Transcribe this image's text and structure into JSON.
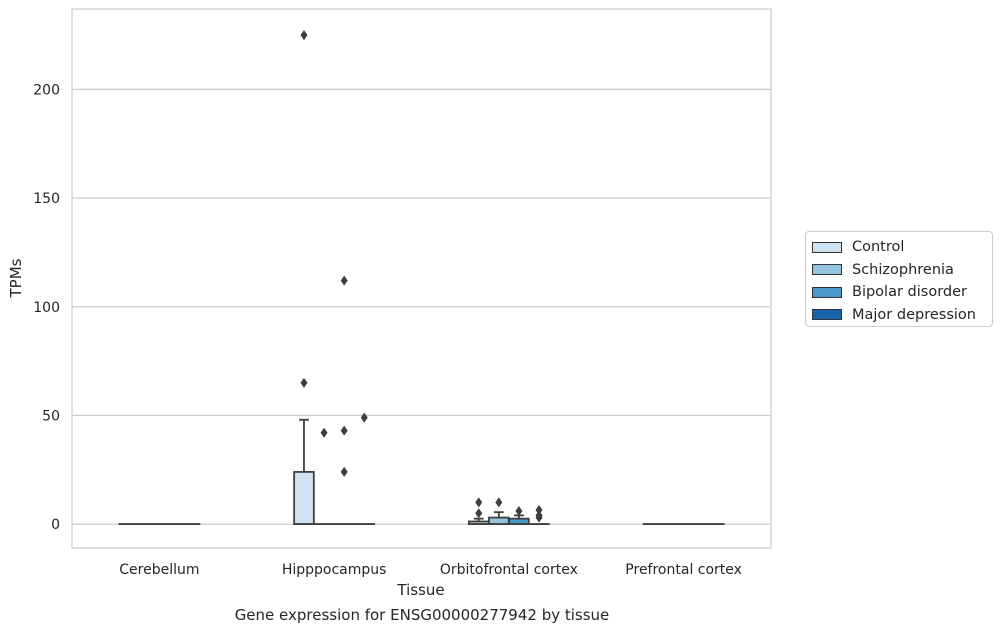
{
  "chart_data": {
    "type": "box",
    "title": "",
    "caption": "Gene expression for ENSG00000277942 by tissue",
    "xlabel": "Tissue",
    "ylabel": "TPMs",
    "ylim": [
      -11,
      237
    ],
    "yticks": [
      0,
      50,
      100,
      150,
      200
    ],
    "grid": true,
    "legend_position": "right",
    "categories": [
      "Cerebellum",
      "Hipppocampus",
      "Orbitofrontal cortex",
      "Prefrontal cortex"
    ],
    "series": [
      {
        "name": "Control",
        "color": "#d0e1f2",
        "boxes": [
          {
            "category": "Cerebellum",
            "q1": 0,
            "median": 0,
            "q3": 0,
            "whisker_low": 0,
            "whisker_high": 0,
            "outliers": []
          },
          {
            "category": "Hipppocampus",
            "q1": 0,
            "median": 0,
            "q3": 24,
            "whisker_low": 0,
            "whisker_high": 48,
            "outliers": [
              65,
              225
            ]
          },
          {
            "category": "Orbitofrontal cortex",
            "q1": 0,
            "median": 0,
            "q3": 1.2,
            "whisker_low": 0,
            "whisker_high": 2.5,
            "outliers": [
              5,
              10
            ]
          },
          {
            "category": "Prefrontal cortex",
            "q1": 0,
            "median": 0,
            "q3": 0,
            "whisker_low": 0,
            "whisker_high": 0,
            "outliers": []
          }
        ]
      },
      {
        "name": "Schizophrenia",
        "color": "#94c4df",
        "boxes": [
          {
            "category": "Cerebellum",
            "q1": 0,
            "median": 0,
            "q3": 0,
            "whisker_low": 0,
            "whisker_high": 0,
            "outliers": []
          },
          {
            "category": "Hipppocampus",
            "q1": 0,
            "median": 0,
            "q3": 0,
            "whisker_low": 0,
            "whisker_high": 0,
            "outliers": [
              42
            ]
          },
          {
            "category": "Orbitofrontal cortex",
            "q1": 0,
            "median": 0,
            "q3": 3,
            "whisker_low": 0,
            "whisker_high": 5.5,
            "outliers": [
              10
            ]
          },
          {
            "category": "Prefrontal cortex",
            "q1": 0,
            "median": 0,
            "q3": 0,
            "whisker_low": 0,
            "whisker_high": 0,
            "outliers": []
          }
        ]
      },
      {
        "name": "Bipolar disorder",
        "color": "#4a98c9",
        "boxes": [
          {
            "category": "Cerebellum",
            "q1": 0,
            "median": 0,
            "q3": 0,
            "whisker_low": 0,
            "whisker_high": 0,
            "outliers": []
          },
          {
            "category": "Hipppocampus",
            "q1": 0,
            "median": 0,
            "q3": 0,
            "whisker_low": 0,
            "whisker_high": 0,
            "outliers": [
              24,
              43,
              112
            ]
          },
          {
            "category": "Orbitofrontal cortex",
            "q1": 0,
            "median": 0,
            "q3": 2.5,
            "whisker_low": 0,
            "whisker_high": 4,
            "outliers": [
              6
            ]
          },
          {
            "category": "Prefrontal cortex",
            "q1": 0,
            "median": 0,
            "q3": 0,
            "whisker_low": 0,
            "whisker_high": 0,
            "outliers": []
          }
        ]
      },
      {
        "name": "Major depression",
        "color": "#1764ab",
        "boxes": [
          {
            "category": "Cerebellum",
            "q1": 0,
            "median": 0,
            "q3": 0,
            "whisker_low": 0,
            "whisker_high": 0,
            "outliers": []
          },
          {
            "category": "Hipppocampus",
            "q1": 0,
            "median": 0,
            "q3": 0,
            "whisker_low": 0,
            "whisker_high": 0,
            "outliers": [
              49
            ]
          },
          {
            "category": "Orbitofrontal cortex",
            "q1": 0,
            "median": 0,
            "q3": 0,
            "whisker_low": 0,
            "whisker_high": 0,
            "outliers": [
              3,
              4,
              6.5
            ]
          },
          {
            "category": "Prefrontal cortex",
            "q1": 0,
            "median": 0,
            "q3": 0,
            "whisker_low": 0,
            "whisker_high": 0,
            "outliers": []
          }
        ]
      }
    ]
  }
}
